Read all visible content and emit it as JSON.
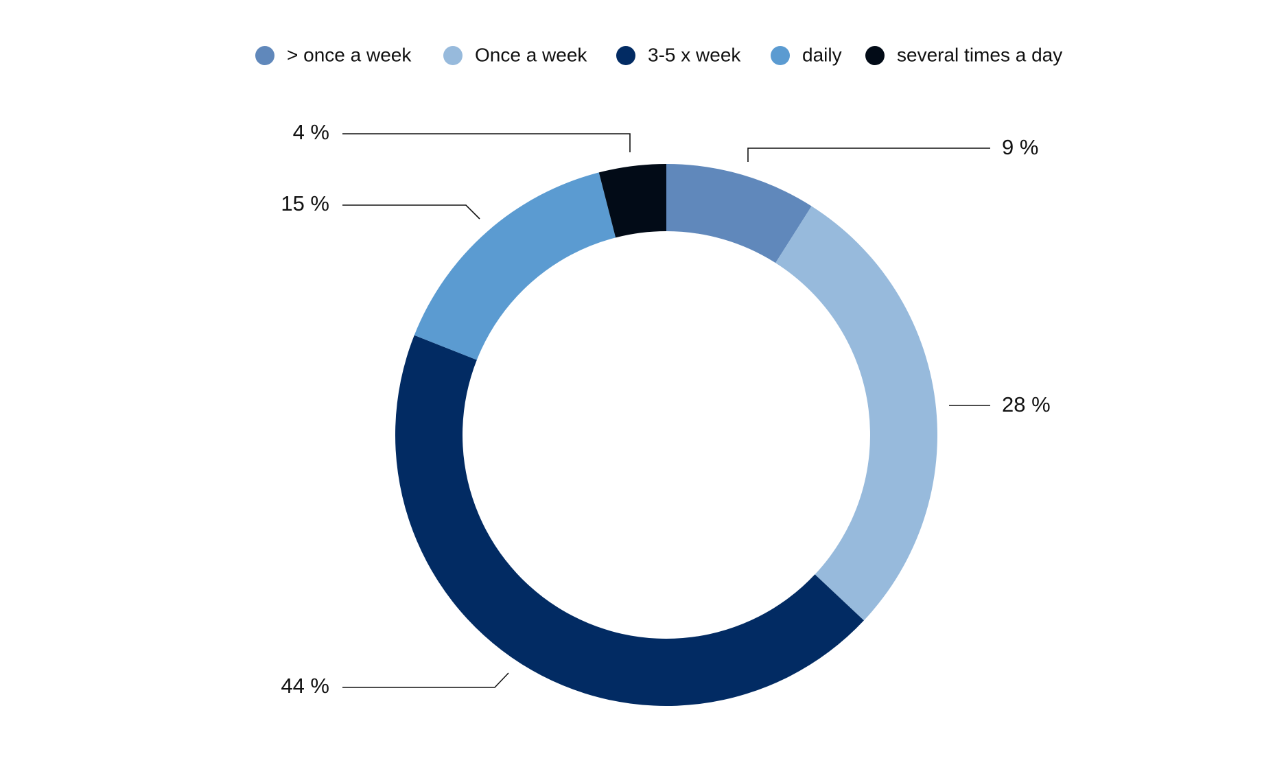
{
  "chart_data": {
    "type": "pie",
    "categories": [
      "> once a week",
      "Once a week",
      "3-5 x week",
      "daily",
      "several times a day"
    ],
    "values": [
      9,
      28,
      44,
      15,
      4
    ],
    "value_labels": [
      "9 %",
      "28 %",
      "44 %",
      "15 %",
      "4 %"
    ],
    "colors": [
      "#6088bb",
      "#97badc",
      "#022b63",
      "#5b9bd1",
      "#020b17"
    ],
    "donut": true,
    "legend": "top"
  }
}
